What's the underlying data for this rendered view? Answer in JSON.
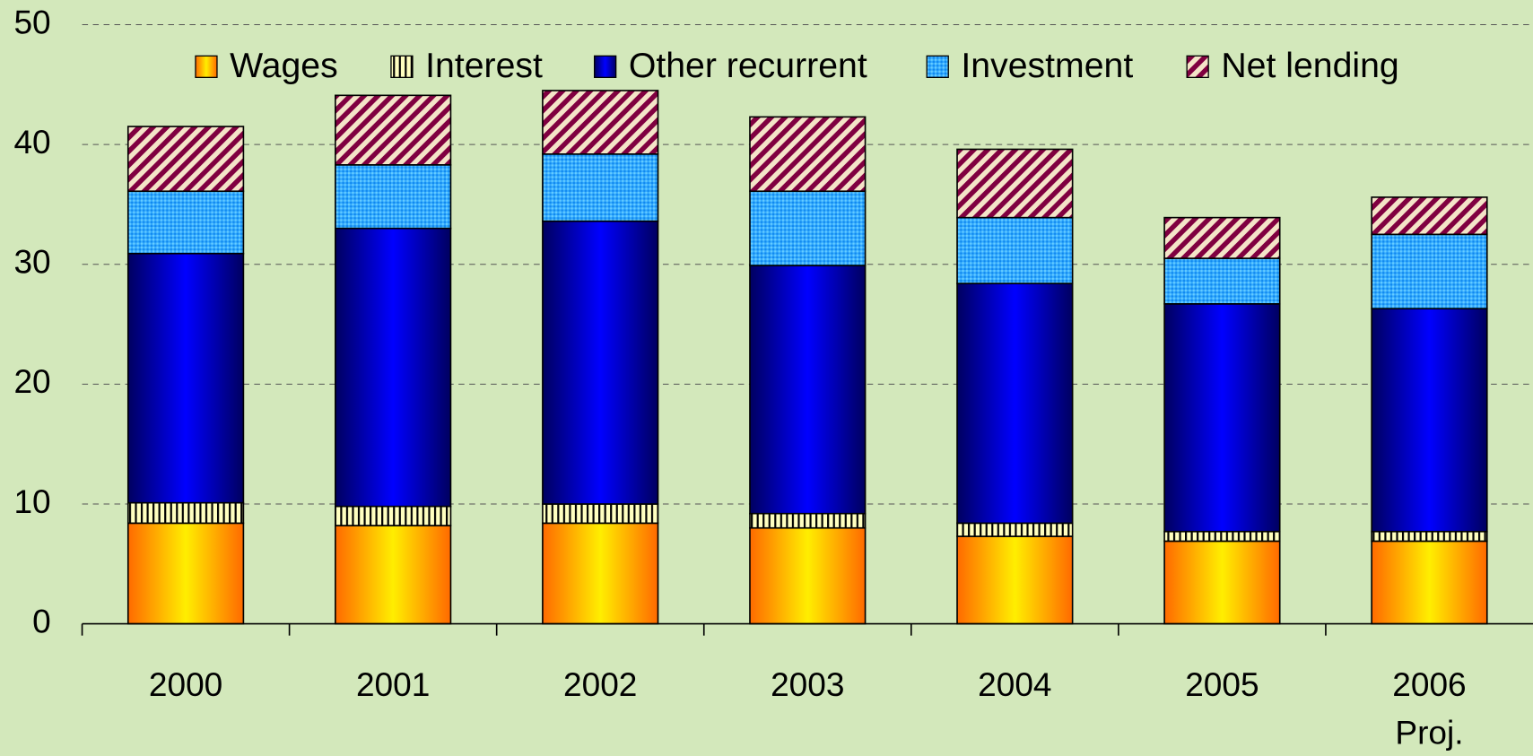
{
  "chart_data": {
    "type": "stacked_bar",
    "categories": [
      "2000",
      "2001",
      "2002",
      "2003",
      "2004",
      "2005",
      "2006"
    ],
    "annotations": [
      "Proj."
    ],
    "series": [
      {
        "name": "Wages",
        "color": "#ffee00",
        "values": [
          8.4,
          8.2,
          8.4,
          8.0,
          7.3,
          6.9,
          6.9
        ]
      },
      {
        "name": "Interest",
        "color": "#ffffc0",
        "values": [
          1.7,
          1.6,
          1.6,
          1.2,
          1.1,
          0.8,
          0.8
        ]
      },
      {
        "name": "Other recurrent",
        "color": "#0000ff",
        "values": [
          20.8,
          23.2,
          23.6,
          20.7,
          20.0,
          19.0,
          18.6
        ]
      },
      {
        "name": "Investment",
        "color": "#33aaff",
        "values": [
          5.2,
          5.3,
          5.6,
          6.2,
          5.5,
          3.8,
          6.2
        ]
      },
      {
        "name": "Net lending",
        "color": "#800040",
        "values": [
          5.4,
          5.8,
          5.3,
          6.2,
          5.7,
          3.4,
          3.1
        ]
      }
    ],
    "ylim": [
      0,
      50
    ],
    "yticks": [
      0,
      10,
      20,
      30,
      40,
      50
    ],
    "grid": true,
    "legend": "top"
  }
}
